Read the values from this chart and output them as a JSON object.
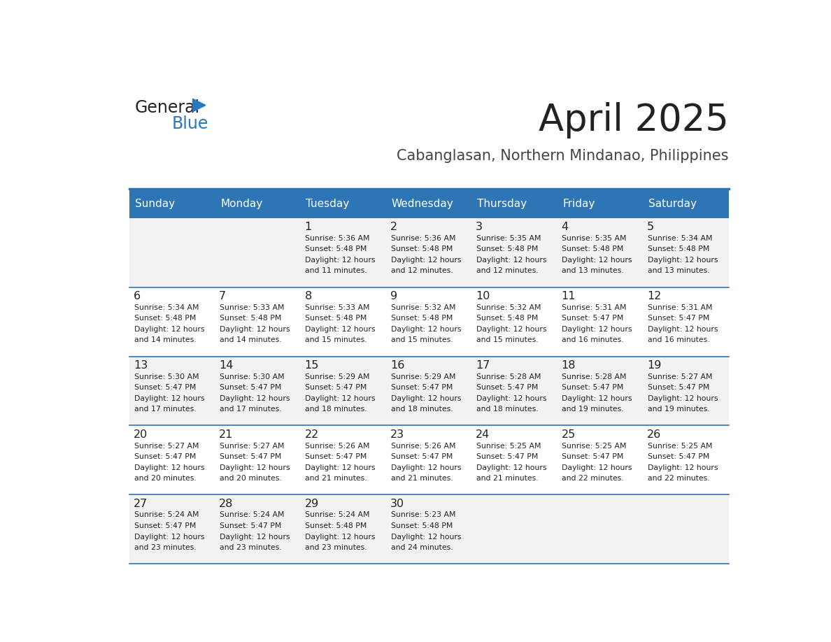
{
  "title": "April 2025",
  "subtitle": "Cabanglasan, Northern Mindanao, Philippines",
  "header_bg": "#2E75B6",
  "header_text_color": "#FFFFFF",
  "cell_bg_light": "#F2F2F2",
  "cell_bg_white": "#FFFFFF",
  "day_names": [
    "Sunday",
    "Monday",
    "Tuesday",
    "Wednesday",
    "Thursday",
    "Friday",
    "Saturday"
  ],
  "title_color": "#222222",
  "subtitle_color": "#444444",
  "text_color": "#222222",
  "divider_color": "#2E75B6",
  "logo_general_color": "#222222",
  "logo_blue_color": "#2878BE",
  "weeks": [
    [
      {
        "day": null,
        "sunrise": null,
        "sunset": null,
        "daylight": null
      },
      {
        "day": null,
        "sunrise": null,
        "sunset": null,
        "daylight": null
      },
      {
        "day": 1,
        "sunrise": "5:36 AM",
        "sunset": "5:48 PM",
        "daylight": "12 hours and 11 minutes."
      },
      {
        "day": 2,
        "sunrise": "5:36 AM",
        "sunset": "5:48 PM",
        "daylight": "12 hours and 12 minutes."
      },
      {
        "day": 3,
        "sunrise": "5:35 AM",
        "sunset": "5:48 PM",
        "daylight": "12 hours and 12 minutes."
      },
      {
        "day": 4,
        "sunrise": "5:35 AM",
        "sunset": "5:48 PM",
        "daylight": "12 hours and 13 minutes."
      },
      {
        "day": 5,
        "sunrise": "5:34 AM",
        "sunset": "5:48 PM",
        "daylight": "12 hours and 13 minutes."
      }
    ],
    [
      {
        "day": 6,
        "sunrise": "5:34 AM",
        "sunset": "5:48 PM",
        "daylight": "12 hours and 14 minutes."
      },
      {
        "day": 7,
        "sunrise": "5:33 AM",
        "sunset": "5:48 PM",
        "daylight": "12 hours and 14 minutes."
      },
      {
        "day": 8,
        "sunrise": "5:33 AM",
        "sunset": "5:48 PM",
        "daylight": "12 hours and 15 minutes."
      },
      {
        "day": 9,
        "sunrise": "5:32 AM",
        "sunset": "5:48 PM",
        "daylight": "12 hours and 15 minutes."
      },
      {
        "day": 10,
        "sunrise": "5:32 AM",
        "sunset": "5:48 PM",
        "daylight": "12 hours and 15 minutes."
      },
      {
        "day": 11,
        "sunrise": "5:31 AM",
        "sunset": "5:47 PM",
        "daylight": "12 hours and 16 minutes."
      },
      {
        "day": 12,
        "sunrise": "5:31 AM",
        "sunset": "5:47 PM",
        "daylight": "12 hours and 16 minutes."
      }
    ],
    [
      {
        "day": 13,
        "sunrise": "5:30 AM",
        "sunset": "5:47 PM",
        "daylight": "12 hours and 17 minutes."
      },
      {
        "day": 14,
        "sunrise": "5:30 AM",
        "sunset": "5:47 PM",
        "daylight": "12 hours and 17 minutes."
      },
      {
        "day": 15,
        "sunrise": "5:29 AM",
        "sunset": "5:47 PM",
        "daylight": "12 hours and 18 minutes."
      },
      {
        "day": 16,
        "sunrise": "5:29 AM",
        "sunset": "5:47 PM",
        "daylight": "12 hours and 18 minutes."
      },
      {
        "day": 17,
        "sunrise": "5:28 AM",
        "sunset": "5:47 PM",
        "daylight": "12 hours and 18 minutes."
      },
      {
        "day": 18,
        "sunrise": "5:28 AM",
        "sunset": "5:47 PM",
        "daylight": "12 hours and 19 minutes."
      },
      {
        "day": 19,
        "sunrise": "5:27 AM",
        "sunset": "5:47 PM",
        "daylight": "12 hours and 19 minutes."
      }
    ],
    [
      {
        "day": 20,
        "sunrise": "5:27 AM",
        "sunset": "5:47 PM",
        "daylight": "12 hours and 20 minutes."
      },
      {
        "day": 21,
        "sunrise": "5:27 AM",
        "sunset": "5:47 PM",
        "daylight": "12 hours and 20 minutes."
      },
      {
        "day": 22,
        "sunrise": "5:26 AM",
        "sunset": "5:47 PM",
        "daylight": "12 hours and 21 minutes."
      },
      {
        "day": 23,
        "sunrise": "5:26 AM",
        "sunset": "5:47 PM",
        "daylight": "12 hours and 21 minutes."
      },
      {
        "day": 24,
        "sunrise": "5:25 AM",
        "sunset": "5:47 PM",
        "daylight": "12 hours and 21 minutes."
      },
      {
        "day": 25,
        "sunrise": "5:25 AM",
        "sunset": "5:47 PM",
        "daylight": "12 hours and 22 minutes."
      },
      {
        "day": 26,
        "sunrise": "5:25 AM",
        "sunset": "5:47 PM",
        "daylight": "12 hours and 22 minutes."
      }
    ],
    [
      {
        "day": 27,
        "sunrise": "5:24 AM",
        "sunset": "5:47 PM",
        "daylight": "12 hours and 23 minutes."
      },
      {
        "day": 28,
        "sunrise": "5:24 AM",
        "sunset": "5:47 PM",
        "daylight": "12 hours and 23 minutes."
      },
      {
        "day": 29,
        "sunrise": "5:24 AM",
        "sunset": "5:48 PM",
        "daylight": "12 hours and 23 minutes."
      },
      {
        "day": 30,
        "sunrise": "5:23 AM",
        "sunset": "5:48 PM",
        "daylight": "12 hours and 24 minutes."
      },
      {
        "day": null,
        "sunrise": null,
        "sunset": null,
        "daylight": null
      },
      {
        "day": null,
        "sunrise": null,
        "sunset": null,
        "daylight": null
      },
      {
        "day": null,
        "sunrise": null,
        "sunset": null,
        "daylight": null
      }
    ]
  ]
}
